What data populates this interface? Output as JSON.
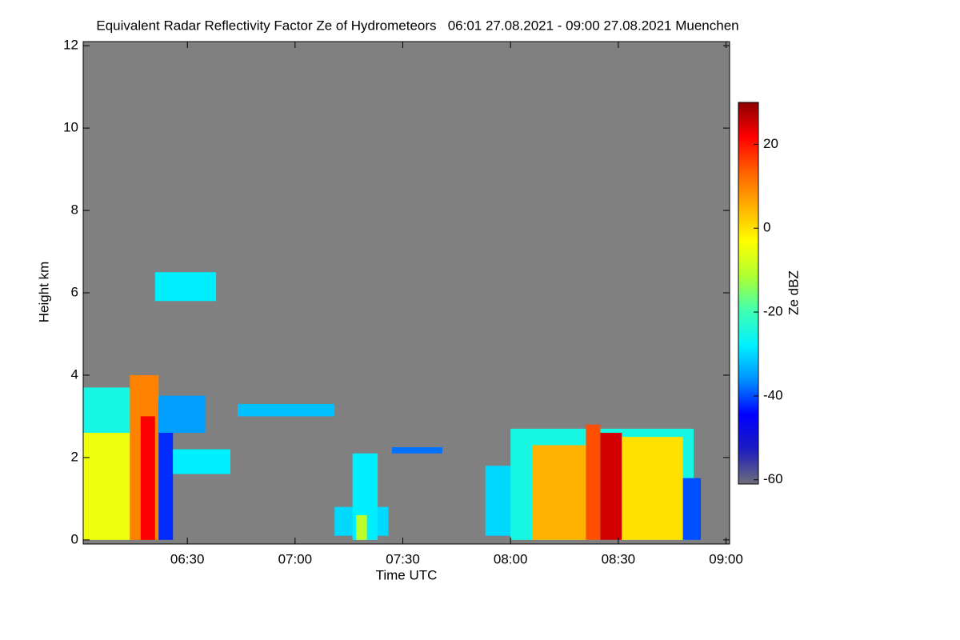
{
  "chart_data": {
    "type": "heatmap",
    "title": "Equivalent Radar Reflectivity Factor Ze of Hydrometeors   06:01 27.08.2021 - 09:00 27.08.2021 Muenchen",
    "x_label": "Time UTC",
    "y_label": "Height km",
    "colorbar_label": "Ze dBZ",
    "background": "#808080",
    "xlim": [
      1,
      181
    ],
    "xticks": [
      {
        "value": 30,
        "label": "06:30"
      },
      {
        "value": 60,
        "label": "07:00"
      },
      {
        "value": 90,
        "label": "07:30"
      },
      {
        "value": 120,
        "label": "08:00"
      },
      {
        "value": 150,
        "label": "08:30"
      },
      {
        "value": 180,
        "label": "09:00"
      }
    ],
    "ylim": [
      -0.1,
      12.1
    ],
    "yticks": [
      0,
      2,
      4,
      6,
      8,
      10,
      12
    ],
    "zlim": [
      -61,
      30
    ],
    "zticks": [
      -60,
      -40,
      -20,
      0,
      20
    ],
    "colormap": [
      "#6e6e78",
      "#1c1cc0",
      "#0000ff",
      "#0090ff",
      "#00f0ff",
      "#40ffb0",
      "#b0ff30",
      "#ffff00",
      "#ffb000",
      "#ff6000",
      "#ff0000",
      "#8c0000"
    ],
    "cells": [
      {
        "t0": 1,
        "t1": 22,
        "h0": 2.5,
        "h1": 3.7,
        "ze": -25
      },
      {
        "t0": 1,
        "t1": 14,
        "h0": 0,
        "h1": 2.6,
        "ze": -5
      },
      {
        "t0": 14,
        "t1": 22,
        "h0": 0,
        "h1": 4,
        "ze": 10
      },
      {
        "t0": 17,
        "t1": 21,
        "h0": 0,
        "h1": 3,
        "ze": 22
      },
      {
        "t0": 22,
        "t1": 26,
        "h0": 0,
        "h1": 3.4,
        "ze": -42
      },
      {
        "t0": 22,
        "t1": 35,
        "h0": 2.6,
        "h1": 3.5,
        "ze": -35
      },
      {
        "t0": 26,
        "t1": 42,
        "h0": 1.6,
        "h1": 2.2,
        "ze": -28
      },
      {
        "t0": 21,
        "t1": 38,
        "h0": 5.8,
        "h1": 6.5,
        "ze": -28
      },
      {
        "t0": 44,
        "t1": 71,
        "h0": 3,
        "h1": 3.3,
        "ze": -32
      },
      {
        "t0": 71,
        "t1": 86,
        "h0": 0.1,
        "h1": 0.8,
        "ze": -30
      },
      {
        "t0": 76,
        "t1": 83,
        "h0": 0,
        "h1": 2.1,
        "ze": -28
      },
      {
        "t0": 77,
        "t1": 80,
        "h0": 0,
        "h1": 0.6,
        "ze": -10
      },
      {
        "t0": 87,
        "t1": 101,
        "h0": 2.1,
        "h1": 2.25,
        "ze": -38
      },
      {
        "t0": 113,
        "t1": 122,
        "h0": 0.1,
        "h1": 1.8,
        "ze": -30
      },
      {
        "t0": 120,
        "t1": 171,
        "h0": 0,
        "h1": 2.7,
        "ze": -25
      },
      {
        "t0": 126,
        "t1": 141,
        "h0": 0,
        "h1": 2.3,
        "ze": 5
      },
      {
        "t0": 141,
        "t1": 145,
        "h0": 0,
        "h1": 2.8,
        "ze": 15
      },
      {
        "t0": 145,
        "t1": 151,
        "h0": 0,
        "h1": 2.6,
        "ze": 25
      },
      {
        "t0": 151,
        "t1": 168,
        "h0": 0,
        "h1": 2.5,
        "ze": 0
      },
      {
        "t0": 168,
        "t1": 173,
        "h0": 0,
        "h1": 1.5,
        "ze": -40
      }
    ]
  }
}
